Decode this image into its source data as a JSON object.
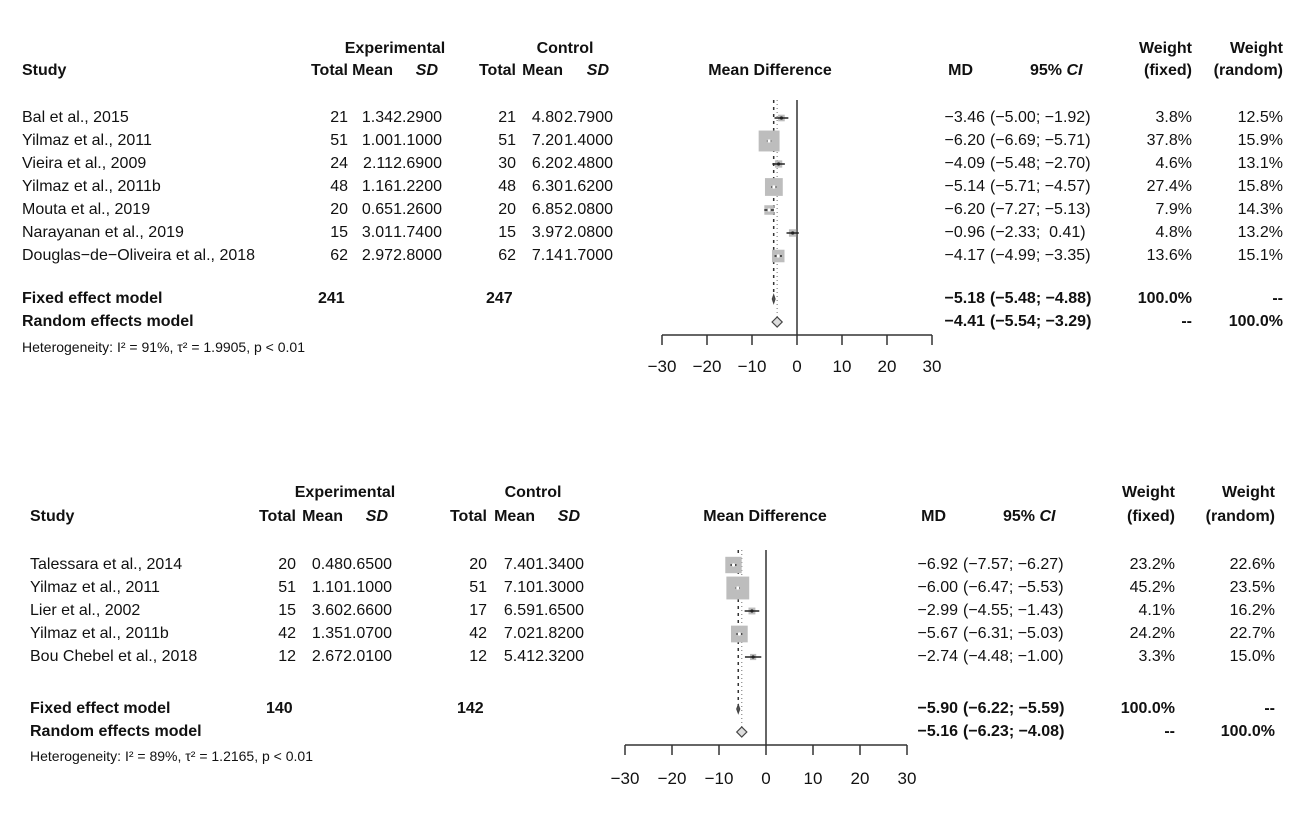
{
  "chart_data": [
    {
      "type": "forest",
      "headers": {
        "study": "Study",
        "experimental": "Experimental",
        "control": "Control",
        "total": "Total",
        "mean": "Mean",
        "sd": "SD",
        "plot": "Mean Difference",
        "md": "MD",
        "ci": "95% CI",
        "ci_prefix": "95% ",
        "ci_italic": "CI",
        "weight_fixed_1": "Weight",
        "weight_fixed_2": "(fixed)",
        "weight_random_1": "Weight",
        "weight_random_2": "(random)"
      },
      "studies": [
        {
          "study": "Bal et al., 2015",
          "e_total": "21",
          "e_mean": "1.34",
          "e_sd": "2.2900",
          "c_total": "21",
          "c_mean": "4.80",
          "c_sd": "2.7900",
          "md": -3.46,
          "lo": -5.0,
          "hi": -1.92,
          "md_text": "−3.46",
          "ci_text": "(−5.00; −1.92)",
          "w_fixed": 3.8,
          "w_fixed_text": "3.8%",
          "w_random_text": "12.5%"
        },
        {
          "study": "Yilmaz et al., 2011",
          "e_total": "51",
          "e_mean": "1.00",
          "e_sd": "1.1000",
          "c_total": "51",
          "c_mean": "7.20",
          "c_sd": "1.4000",
          "md": -6.2,
          "lo": -6.69,
          "hi": -5.71,
          "md_text": "−6.20",
          "ci_text": "(−6.69; −5.71)",
          "w_fixed": 37.8,
          "w_fixed_text": "37.8%",
          "w_random_text": "15.9%"
        },
        {
          "study": "Vieira et al., 2009",
          "e_total": "24",
          "e_mean": "2.11",
          "e_sd": "2.6900",
          "c_total": "30",
          "c_mean": "6.20",
          "c_sd": "2.4800",
          "md": -4.09,
          "lo": -5.48,
          "hi": -2.7,
          "md_text": "−4.09",
          "ci_text": "(−5.48; −2.70)",
          "w_fixed": 4.6,
          "w_fixed_text": "4.6%",
          "w_random_text": "13.1%"
        },
        {
          "study": "Yilmaz et al., 2011b",
          "e_total": "48",
          "e_mean": "1.16",
          "e_sd": "1.2200",
          "c_total": "48",
          "c_mean": "6.30",
          "c_sd": "1.6200",
          "md": -5.14,
          "lo": -5.71,
          "hi": -4.57,
          "md_text": "−5.14",
          "ci_text": "(−5.71; −4.57)",
          "w_fixed": 27.4,
          "w_fixed_text": "27.4%",
          "w_random_text": "15.8%"
        },
        {
          "study": "Mouta et al., 2019",
          "e_total": "20",
          "e_mean": "0.65",
          "e_sd": "1.2600",
          "c_total": "20",
          "c_mean": "6.85",
          "c_sd": "2.0800",
          "md": -6.2,
          "lo": -7.27,
          "hi": -5.13,
          "md_text": "−6.20",
          "ci_text": "(−7.27; −5.13)",
          "w_fixed": 7.9,
          "w_fixed_text": "7.9%",
          "w_random_text": "14.3%"
        },
        {
          "study": "Narayanan et al., 2019",
          "e_total": "15",
          "e_mean": "3.01",
          "e_sd": "1.7400",
          "c_total": "15",
          "c_mean": "3.97",
          "c_sd": "2.0800",
          "md": -0.96,
          "lo": -2.33,
          "hi": 0.41,
          "md_text": "−0.96",
          "ci_text": "(−2.33;  0.41)",
          "w_fixed": 4.8,
          "w_fixed_text": "4.8%",
          "w_random_text": "13.2%"
        },
        {
          "study": "Douglas−de−Oliveira et al., 2018",
          "e_total": "62",
          "e_mean": "2.97",
          "e_sd": "2.8000",
          "c_total": "62",
          "c_mean": "7.14",
          "c_sd": "1.7000",
          "md": -4.17,
          "lo": -4.99,
          "hi": -3.35,
          "md_text": "−4.17",
          "ci_text": "(−4.99; −3.35)",
          "w_fixed": 13.6,
          "w_fixed_text": "13.6%",
          "w_random_text": "15.1%"
        }
      ],
      "fixed": {
        "label": "Fixed effect model",
        "e_total": "241",
        "c_total": "247",
        "md": -5.18,
        "lo": -5.48,
        "hi": -4.88,
        "md_text": "−5.18",
        "ci_text": "(−5.48; −4.88)",
        "w_fixed_text": "100.0%",
        "w_random_text": "--"
      },
      "random": {
        "label": "Random effects model",
        "md": -4.41,
        "lo": -5.54,
        "hi": -3.29,
        "md_text": "−4.41",
        "ci_text": "(−5.54; −3.29)",
        "w_fixed_text": "--",
        "w_random_text": "100.0%"
      },
      "heterogeneity": "Heterogeneity: I² = 91%, τ² = 1.9905, p < 0.01",
      "xlim": [
        -30,
        30
      ],
      "ticks": [
        -30,
        -20,
        -10,
        0,
        10,
        20,
        30
      ],
      "tick_labels": [
        "−30",
        "−20",
        "−10",
        "0",
        "10",
        "20",
        "30"
      ]
    },
    {
      "type": "forest",
      "headers": {
        "study": "Study",
        "experimental": "Experimental",
        "control": "Control",
        "total": "Total",
        "mean": "Mean",
        "sd": "SD",
        "plot": "Mean Difference",
        "md": "MD",
        "ci": "95% CI",
        "ci_prefix": "95% ",
        "ci_italic": "CI",
        "weight_fixed_1": "Weight",
        "weight_fixed_2": "(fixed)",
        "weight_random_1": "Weight",
        "weight_random_2": "(random)"
      },
      "studies": [
        {
          "study": "Talessara et al., 2014",
          "e_total": "20",
          "e_mean": "0.48",
          "e_sd": "0.6500",
          "c_total": "20",
          "c_mean": "7.40",
          "c_sd": "1.3400",
          "md": -6.92,
          "lo": -7.57,
          "hi": -6.27,
          "md_text": "−6.92",
          "ci_text": "(−7.57; −6.27)",
          "w_fixed": 23.2,
          "w_fixed_text": "23.2%",
          "w_random_text": "22.6%"
        },
        {
          "study": "Yilmaz et al., 2011",
          "e_total": "51",
          "e_mean": "1.10",
          "e_sd": "1.1000",
          "c_total": "51",
          "c_mean": "7.10",
          "c_sd": "1.3000",
          "md": -6.0,
          "lo": -6.47,
          "hi": -5.53,
          "md_text": "−6.00",
          "ci_text": "(−6.47; −5.53)",
          "w_fixed": 45.2,
          "w_fixed_text": "45.2%",
          "w_random_text": "23.5%"
        },
        {
          "study": "Lier et al., 2002",
          "e_total": "15",
          "e_mean": "3.60",
          "e_sd": "2.6600",
          "c_total": "17",
          "c_mean": "6.59",
          "c_sd": "1.6500",
          "md": -2.99,
          "lo": -4.55,
          "hi": -1.43,
          "md_text": "−2.99",
          "ci_text": "(−4.55; −1.43)",
          "w_fixed": 4.1,
          "w_fixed_text": "4.1%",
          "w_random_text": "16.2%"
        },
        {
          "study": "Yilmaz et al., 2011b",
          "e_total": "42",
          "e_mean": "1.35",
          "e_sd": "1.0700",
          "c_total": "42",
          "c_mean": "7.02",
          "c_sd": "1.8200",
          "md": -5.67,
          "lo": -6.31,
          "hi": -5.03,
          "md_text": "−5.67",
          "ci_text": "(−6.31; −5.03)",
          "w_fixed": 24.2,
          "w_fixed_text": "24.2%",
          "w_random_text": "22.7%"
        },
        {
          "study": "Bou Chebel et al., 2018",
          "e_total": "12",
          "e_mean": "2.67",
          "e_sd": "2.0100",
          "c_total": "12",
          "c_mean": "5.41",
          "c_sd": "2.3200",
          "md": -2.74,
          "lo": -4.48,
          "hi": -1.0,
          "md_text": "−2.74",
          "ci_text": "(−4.48; −1.00)",
          "w_fixed": 3.3,
          "w_fixed_text": "3.3%",
          "w_random_text": "15.0%"
        }
      ],
      "fixed": {
        "label": "Fixed effect model",
        "e_total": "140",
        "c_total": "142",
        "md": -5.9,
        "lo": -6.22,
        "hi": -5.59,
        "md_text": "−5.90",
        "ci_text": "(−6.22; −5.59)",
        "w_fixed_text": "100.0%",
        "w_random_text": "--"
      },
      "random": {
        "label": "Random effects model",
        "md": -5.16,
        "lo": -6.23,
        "hi": -4.08,
        "md_text": "−5.16",
        "ci_text": "(−6.23; −4.08)",
        "w_fixed_text": "--",
        "w_random_text": "100.0%"
      },
      "heterogeneity": "Heterogeneity: I² = 89%, τ² = 1.2165, p < 0.01",
      "xlim": [
        -30,
        30
      ],
      "ticks": [
        -30,
        -20,
        -10,
        0,
        10,
        20,
        30
      ],
      "tick_labels": [
        "−30",
        "−20",
        "−10",
        "0",
        "10",
        "20",
        "30"
      ]
    }
  ],
  "colors": {
    "square": "#bdbdbd",
    "line": "#222222"
  }
}
